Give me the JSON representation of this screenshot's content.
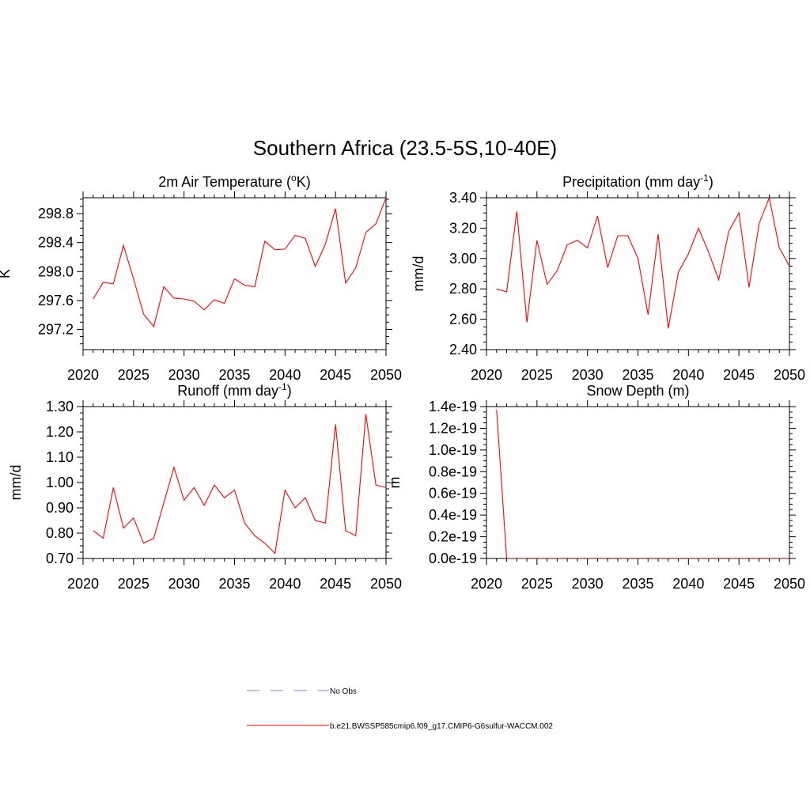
{
  "figure": {
    "title": "Southern Africa (23.5-5S,10-40E)",
    "series_color": "#ff0000",
    "obs_color": "#9999dd"
  },
  "legend": {
    "obs_label": "No Obs",
    "model_label": "b.e21.BWSSP585cmip6.f09_g17.CMIP6-G6sulfur-WACCM.002"
  },
  "chart_data": [
    {
      "type": "line",
      "title": "2m Air Temperature (°K)",
      "title_main": "2m Air Temperature (",
      "title_sup_prefix": "o",
      "title_end": "K)",
      "ylabel": "K",
      "xlim": [
        2020,
        2050
      ],
      "ylim": [
        296.92,
        299.02
      ],
      "xticks": [
        "2020",
        "2025",
        "2030",
        "2035",
        "2040",
        "2045",
        "2050"
      ],
      "yticks": [
        "297.2",
        "297.6",
        "298.0",
        "298.4",
        "298.8"
      ],
      "series": [
        {
          "x": [
            2021,
            2022,
            2023,
            2024,
            2025,
            2026,
            2027,
            2028,
            2029,
            2030,
            2031,
            2032,
            2033,
            2034,
            2035,
            2036,
            2037,
            2038,
            2039,
            2040,
            2041,
            2042,
            2043,
            2044,
            2045,
            2046,
            2047,
            2048,
            2049,
            2050
          ],
          "values": [
            297.62,
            297.85,
            297.83,
            298.36,
            297.9,
            297.41,
            297.24,
            297.79,
            297.63,
            297.62,
            297.59,
            297.47,
            297.61,
            297.56,
            297.9,
            297.81,
            297.79,
            298.42,
            298.3,
            298.31,
            298.5,
            298.46,
            298.07,
            298.38,
            298.87,
            297.84,
            298.05,
            298.54,
            298.66,
            299.02
          ]
        }
      ]
    },
    {
      "type": "line",
      "title": "Precipitation (mm day-1)",
      "title_main": "Precipitation (mm day",
      "title_sup": "-1",
      "title_end": ")",
      "ylabel": "mm/d",
      "xlim": [
        2020,
        2050
      ],
      "ylim": [
        2.4,
        3.4
      ],
      "xticks": [
        "2020",
        "2025",
        "2030",
        "2035",
        "2040",
        "2045",
        "2050"
      ],
      "yticks": [
        "2.40",
        "2.60",
        "2.80",
        "3.00",
        "3.20",
        "3.40"
      ],
      "series": [
        {
          "x": [
            2021,
            2022,
            2023,
            2024,
            2025,
            2026,
            2027,
            2028,
            2029,
            2030,
            2031,
            2032,
            2033,
            2034,
            2035,
            2036,
            2037,
            2038,
            2039,
            2040,
            2041,
            2042,
            2043,
            2044,
            2045,
            2046,
            2047,
            2048,
            2049,
            2050
          ],
          "values": [
            2.8,
            2.78,
            3.31,
            2.58,
            3.12,
            2.83,
            2.92,
            3.09,
            3.12,
            3.07,
            3.28,
            2.94,
            3.15,
            3.15,
            3.0,
            2.63,
            3.16,
            2.54,
            2.91,
            3.03,
            3.2,
            3.04,
            2.86,
            3.18,
            3.3,
            2.81,
            3.23,
            3.4,
            3.07,
            2.95
          ]
        }
      ]
    },
    {
      "type": "line",
      "title": "Runoff (mm day-1)",
      "title_main": "Runoff (mm day",
      "title_sup": "-1",
      "title_end": ")",
      "ylabel": "mm/d",
      "xlim": [
        2020,
        2050
      ],
      "ylim": [
        0.7,
        1.3
      ],
      "xticks": [
        "2020",
        "2025",
        "2030",
        "2035",
        "2040",
        "2045",
        "2050"
      ],
      "yticks": [
        "0.70",
        "0.80",
        "0.90",
        "1.00",
        "1.10",
        "1.20",
        "1.30"
      ],
      "series": [
        {
          "x": [
            2021,
            2022,
            2023,
            2024,
            2025,
            2026,
            2027,
            2028,
            2029,
            2030,
            2031,
            2032,
            2033,
            2034,
            2035,
            2036,
            2037,
            2038,
            2039,
            2040,
            2041,
            2042,
            2043,
            2044,
            2045,
            2046,
            2047,
            2048,
            2049,
            2050
          ],
          "values": [
            0.81,
            0.78,
            0.98,
            0.82,
            0.86,
            0.76,
            0.78,
            0.92,
            1.06,
            0.93,
            0.98,
            0.91,
            0.99,
            0.94,
            0.97,
            0.84,
            0.79,
            0.76,
            0.72,
            0.97,
            0.9,
            0.94,
            0.85,
            0.84,
            1.23,
            0.81,
            0.79,
            1.27,
            0.99,
            0.98
          ]
        }
      ]
    },
    {
      "type": "line",
      "title": "Snow Depth (m)",
      "title_main": "Snow Depth (m)",
      "ylabel": "m",
      "xlim": [
        2020,
        2050
      ],
      "ylim": [
        0,
        1.4e-19
      ],
      "xticks": [
        "2020",
        "2025",
        "2030",
        "2035",
        "2040",
        "2045",
        "2050"
      ],
      "yticks": [
        "0.0e-19",
        "0.2e-19",
        "0.4e-19",
        "0.6e-19",
        "0.8e-19",
        "1.0e-19",
        "1.2e-19",
        "1.4e-19"
      ],
      "series": [
        {
          "x": [
            2021,
            2022,
            2023,
            2024,
            2025,
            2026,
            2027,
            2028,
            2029,
            2030,
            2031,
            2032,
            2033,
            2034,
            2035,
            2036,
            2037,
            2038,
            2039,
            2040,
            2041,
            2042,
            2043,
            2044,
            2045,
            2046,
            2047,
            2048,
            2049,
            2050
          ],
          "values": [
            1.37e-19,
            0,
            0,
            0,
            0,
            0,
            0,
            0,
            0,
            0,
            0,
            0,
            0,
            0,
            0,
            0,
            0,
            0,
            0,
            0,
            0,
            0,
            0,
            0,
            0,
            0,
            0,
            0,
            0,
            0
          ]
        }
      ]
    }
  ]
}
